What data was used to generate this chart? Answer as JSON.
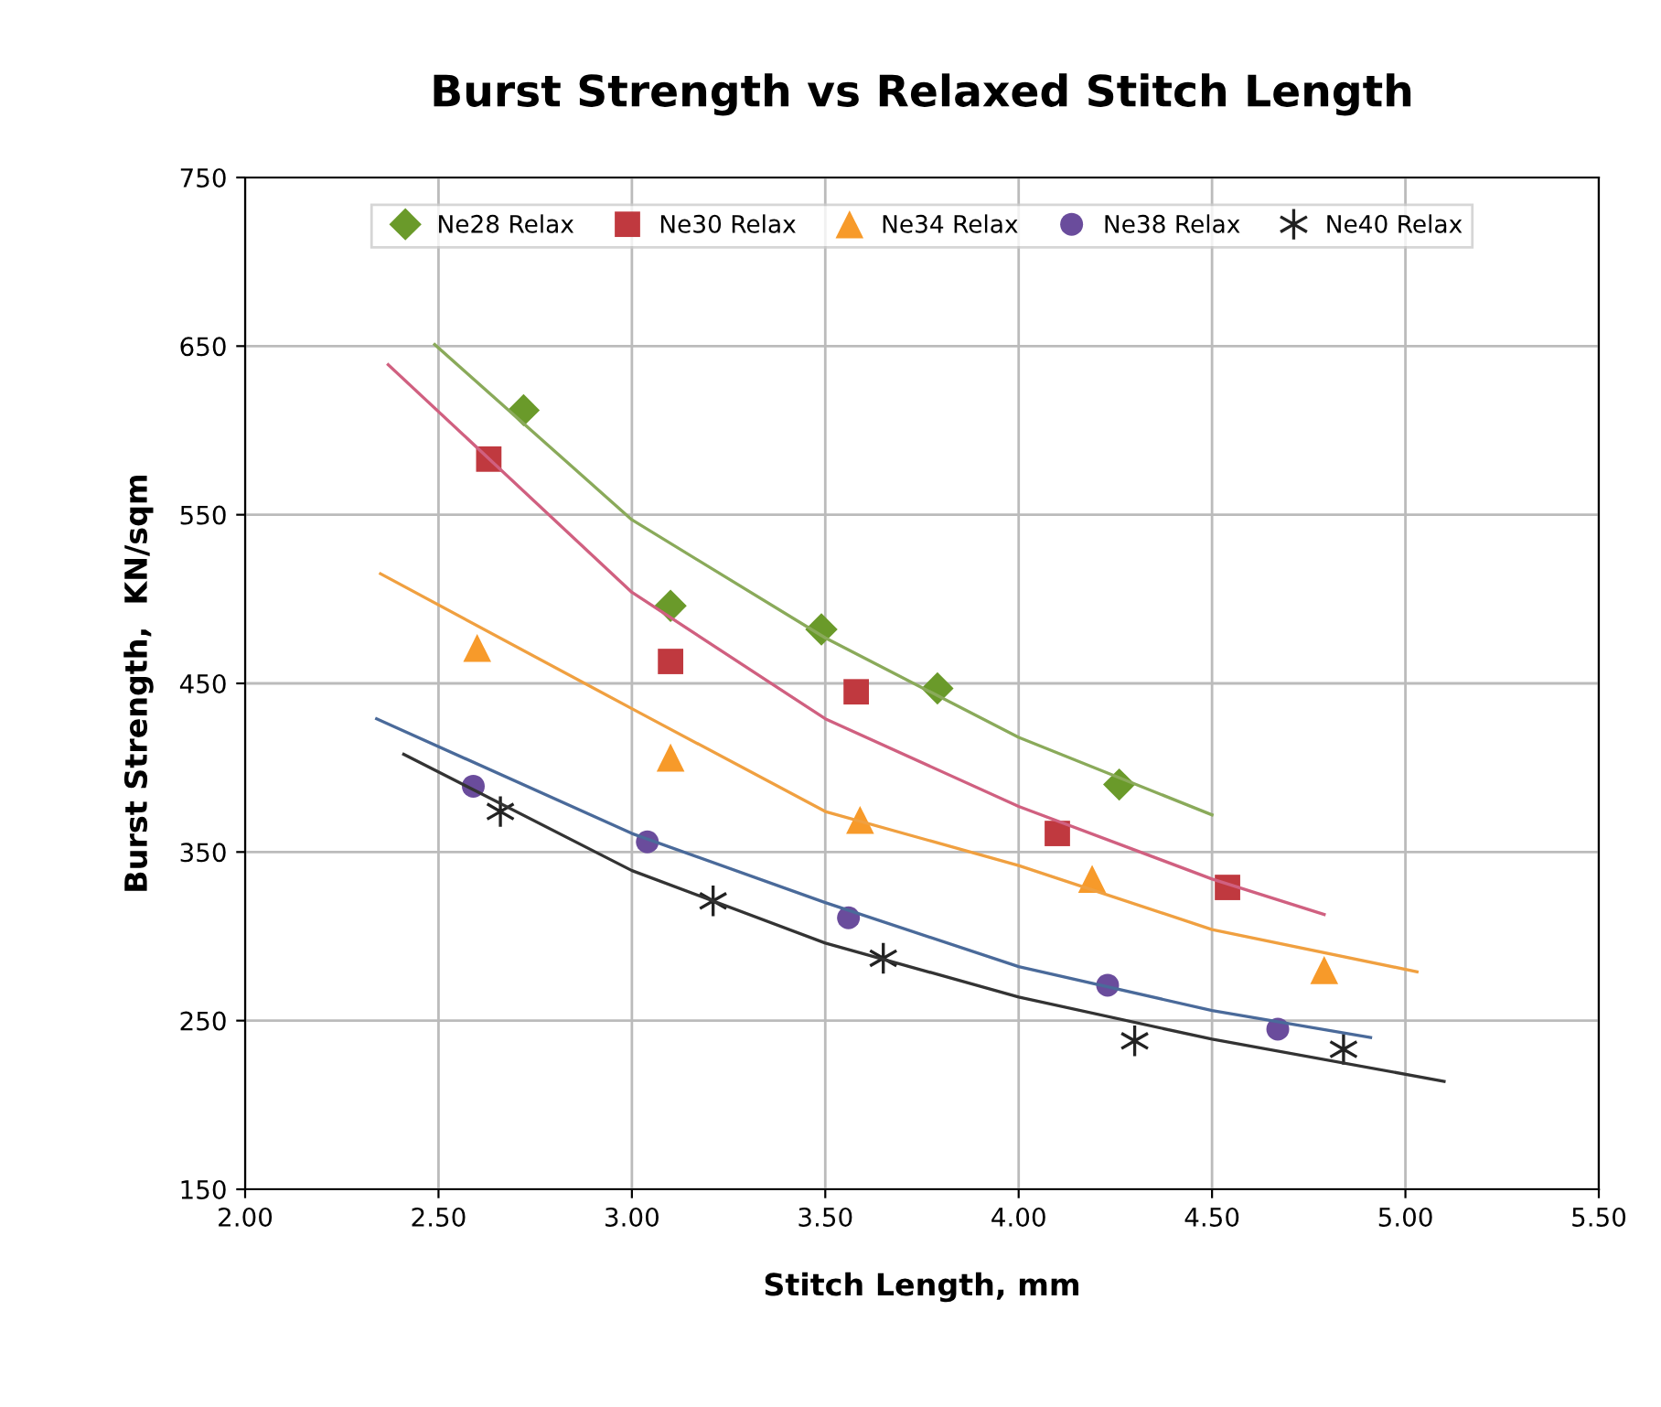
{
  "chart_data": {
    "type": "scatter",
    "title": "Burst Strength vs Relaxed Stitch Length",
    "xlabel": "Stitch Length, mm",
    "ylabel": "Burst Strength,  KN/sqm",
    "xlim": [
      2.0,
      5.5
    ],
    "xticks": [
      {
        "value": 2.0,
        "label": "2.00"
      },
      {
        "value": 2.5,
        "label": "2.50"
      },
      {
        "value": 3.0,
        "label": "3.00"
      },
      {
        "value": 3.5,
        "label": "3.50"
      },
      {
        "value": 4.0,
        "label": "4.00"
      },
      {
        "value": 4.5,
        "label": "4.50"
      },
      {
        "value": 5.0,
        "label": "5.00"
      },
      {
        "value": 5.5,
        "label": "5.50"
      }
    ],
    "ylim": [
      150,
      750
    ],
    "yticks": [
      150,
      250,
      350,
      450,
      550,
      650,
      750
    ],
    "grid": true,
    "legend": "top",
    "series": [
      {
        "name": "Ne28 Relax",
        "marker": "diamond",
        "color": "#6a9a2a",
        "x": [
          2.72,
          3.1,
          3.49,
          3.79,
          4.26
        ],
        "values": [
          612,
          496,
          482,
          447,
          390
        ]
      },
      {
        "name": "Ne30 Relax",
        "marker": "square",
        "color": "#c0393f",
        "x": [
          2.63,
          3.1,
          3.58,
          4.1,
          4.54
        ],
        "values": [
          583,
          463,
          445,
          361,
          329
        ]
      },
      {
        "name": "Ne34 Relax",
        "marker": "triangle",
        "color": "#f79a2a",
        "x": [
          2.6,
          3.1,
          3.59,
          4.19,
          4.79
        ],
        "values": [
          471,
          406,
          369,
          334,
          280
        ]
      },
      {
        "name": "Ne38 Relax",
        "marker": "circle",
        "color": "#6a4c9c",
        "x": [
          2.59,
          3.04,
          3.56,
          4.23,
          4.67
        ],
        "values": [
          389,
          356,
          311,
          271,
          245
        ]
      },
      {
        "name": "Ne40 Relax",
        "marker": "cross",
        "color": "#222222",
        "x": [
          2.66,
          3.21,
          3.65,
          4.3,
          4.84
        ],
        "values": [
          374,
          321,
          287,
          238,
          233
        ]
      },
      {
        "type": "line",
        "marker": "none",
        "color": "#8aaa5a",
        "x": [
          2.49,
          3.0,
          3.5,
          4.0,
          4.5
        ],
        "values": [
          651,
          547,
          477,
          418,
          372
        ]
      },
      {
        "type": "line",
        "marker": "none",
        "color": "#d06080",
        "x": [
          2.37,
          3.0,
          3.5,
          4.0,
          4.5,
          4.79
        ],
        "values": [
          639,
          504,
          429,
          377,
          334,
          313
        ]
      },
      {
        "type": "line",
        "marker": "none",
        "color": "#f0a040",
        "x": [
          2.35,
          3.0,
          3.5,
          4.0,
          4.5,
          5.03
        ],
        "values": [
          515,
          435,
          374,
          342,
          304,
          279
        ]
      },
      {
        "type": "line",
        "marker": "none",
        "color": "#4a6a9a",
        "x": [
          2.34,
          3.0,
          3.5,
          4.0,
          4.5,
          4.91
        ],
        "values": [
          429,
          361,
          320,
          282,
          256,
          240
        ]
      },
      {
        "type": "line",
        "marker": "none",
        "color": "#333333",
        "x": [
          2.41,
          3.0,
          3.5,
          4.0,
          4.5,
          5.1
        ],
        "values": [
          408,
          339,
          296,
          264,
          239,
          214
        ]
      }
    ]
  }
}
